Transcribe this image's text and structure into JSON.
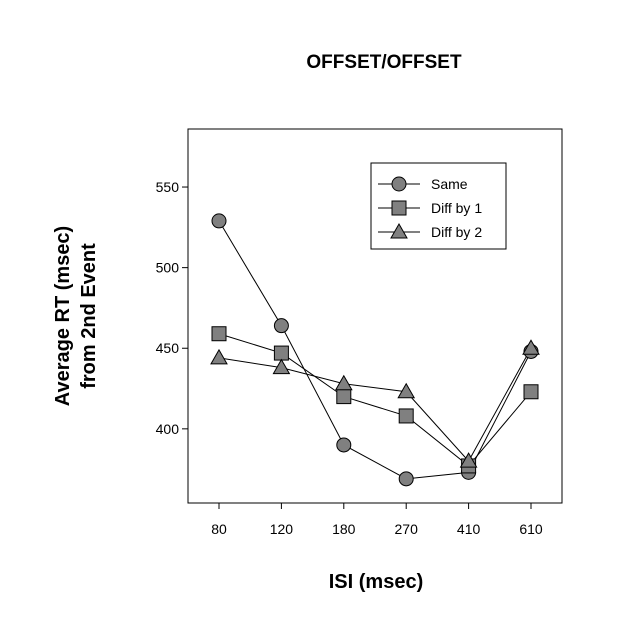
{
  "chart_data": {
    "type": "line",
    "title": "OFFSET/OFFSET",
    "xlabel": "ISI (msec)",
    "ylabel": [
      "Average RT (msec)",
      "from 2nd Event"
    ],
    "categories": [
      "80",
      "120",
      "180",
      "270",
      "410",
      "610"
    ],
    "yticks": [
      400,
      450,
      500,
      550
    ],
    "ylim": [
      354,
      586
    ],
    "grid": false,
    "legend_position": "top-right",
    "series": [
      {
        "name": "Same",
        "marker": "circle",
        "values": [
          529,
          464,
          390,
          369,
          373,
          448
        ]
      },
      {
        "name": "Diff by 1",
        "marker": "square",
        "values": [
          459,
          447,
          420,
          408,
          377,
          423
        ]
      },
      {
        "name": "Diff by 2",
        "marker": "triangle",
        "values": [
          444,
          438,
          428,
          423,
          380,
          450
        ]
      }
    ],
    "colors": {
      "marker_fill": "#808080",
      "line": "#000000"
    }
  }
}
